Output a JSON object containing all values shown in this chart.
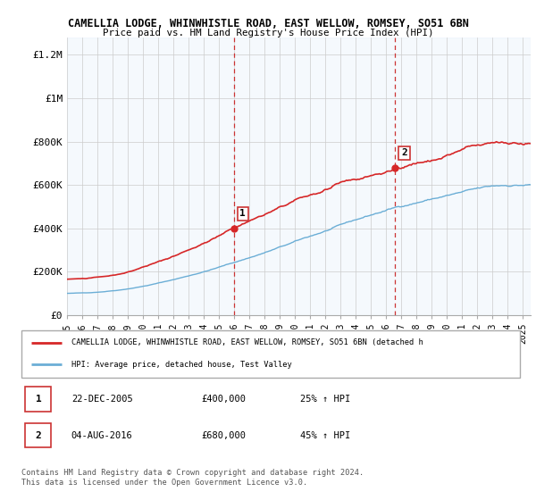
{
  "title1": "CAMELLIA LODGE, WHINWHISTLE ROAD, EAST WELLOW, ROMSEY, SO51 6BN",
  "title2": "Price paid vs. HM Land Registry's House Price Index (HPI)",
  "ylabel_ticks": [
    "£0",
    "£200K",
    "£400K",
    "£600K",
    "£800K",
    "£1M",
    "£1.2M"
  ],
  "ylabel_values": [
    0,
    200000,
    400000,
    600000,
    800000,
    1000000,
    1200000
  ],
  "ylim": [
    0,
    1280000
  ],
  "x_start_year": 1995,
  "x_end_year": 2025,
  "purchase1_date": 2005.97,
  "purchase1_price": 400000,
  "purchase1_label": "1",
  "purchase2_date": 2016.58,
  "purchase2_price": 680000,
  "purchase2_label": "2",
  "hpi_color": "#6baed6",
  "property_color": "#d62728",
  "shading_color": "#cce0f5",
  "legend_property_label": "CAMELLIA LODGE, WHINWHISTLE ROAD, EAST WELLOW, ROMSEY, SO51 6BN (detached h",
  "legend_hpi_label": "HPI: Average price, detached house, Test Valley",
  "table_rows": [
    {
      "num": "1",
      "date": "22-DEC-2005",
      "price": "£400,000",
      "change": "25% ↑ HPI"
    },
    {
      "num": "2",
      "date": "04-AUG-2016",
      "price": "£680,000",
      "change": "45% ↑ HPI"
    }
  ],
  "footer": "Contains HM Land Registry data © Crown copyright and database right 2024.\nThis data is licensed under the Open Government Licence v3.0."
}
